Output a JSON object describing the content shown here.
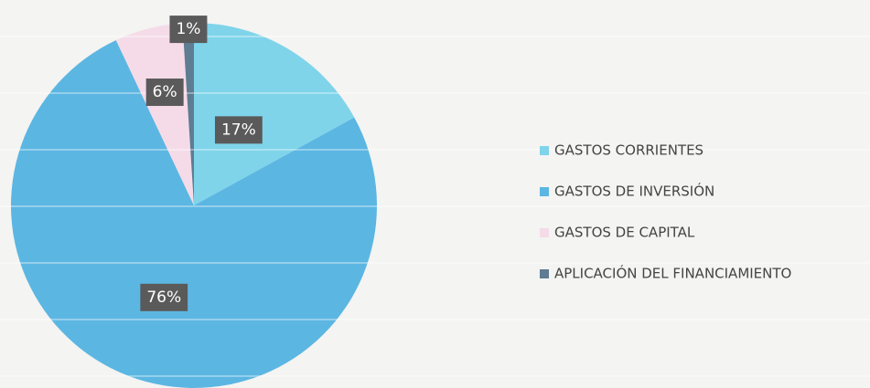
{
  "chart_data": {
    "type": "pie",
    "categories": [
      "GASTOS CORRIENTES",
      "GASTOS DE INVERSIÓN",
      "GASTOS DE CAPITAL",
      "APLICACIÓN DEL FINANCIAMIENTO"
    ],
    "values": [
      17,
      76,
      6,
      1
    ],
    "value_labels": [
      "17%",
      "76%",
      "6%",
      "1%"
    ],
    "colors": [
      "#7fd4ea",
      "#5cb6e2",
      "#f5dbe8",
      "#5e7c92"
    ],
    "legend": "right"
  }
}
